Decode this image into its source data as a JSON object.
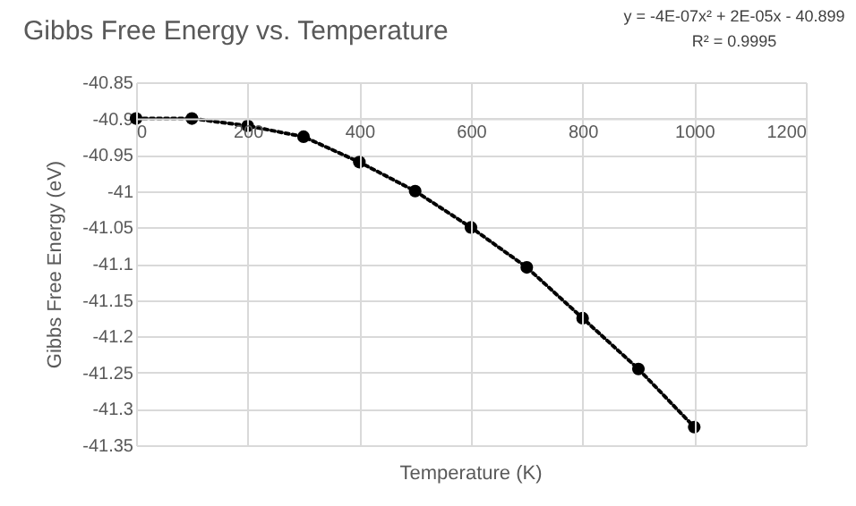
{
  "chart_data": {
    "type": "scatter",
    "title": "Gibbs Free Energy vs. Temperature",
    "xlabel": "Temperature (K)",
    "ylabel": "Gibbs Free Energy (eV)",
    "annotations": [
      "y = -4E-07x² + 2E-05x - 40.899",
      "R² = 0.9995"
    ],
    "x": [
      0,
      100,
      200,
      300,
      400,
      500,
      600,
      700,
      800,
      900,
      1000
    ],
    "series": [
      {
        "color": "#000000",
        "marker": "circle",
        "values": [
          -40.9,
          -40.9,
          -40.91,
          -40.925,
          -40.96,
          -41,
          -41.05,
          -41.105,
          -41.175,
          -41.245,
          -41.325
        ]
      },
      {
        "type": "line",
        "color": "#000000",
        "marker": "none",
        "line_style": "dotted",
        "x": [
          0,
          100,
          200,
          300,
          400,
          500,
          600,
          700,
          800,
          900,
          1000
        ],
        "values": [
          -40.9,
          -40.9,
          -40.91,
          -40.925,
          -40.96,
          -41,
          -41.05,
          -41.105,
          -41.175,
          -41.245,
          -41.325
        ]
      }
    ],
    "xlim": [
      0,
      1200
    ],
    "xticks": [
      0,
      200,
      400,
      600,
      800,
      1000,
      1200
    ],
    "ylim": [
      -41.35,
      -40.85
    ],
    "yticks": [
      -40.85,
      -40.9,
      -40.95,
      -41,
      -41.05,
      -41.1,
      -41.15,
      -41.2,
      -41.25,
      -41.3,
      -41.35
    ],
    "grid": true
  }
}
